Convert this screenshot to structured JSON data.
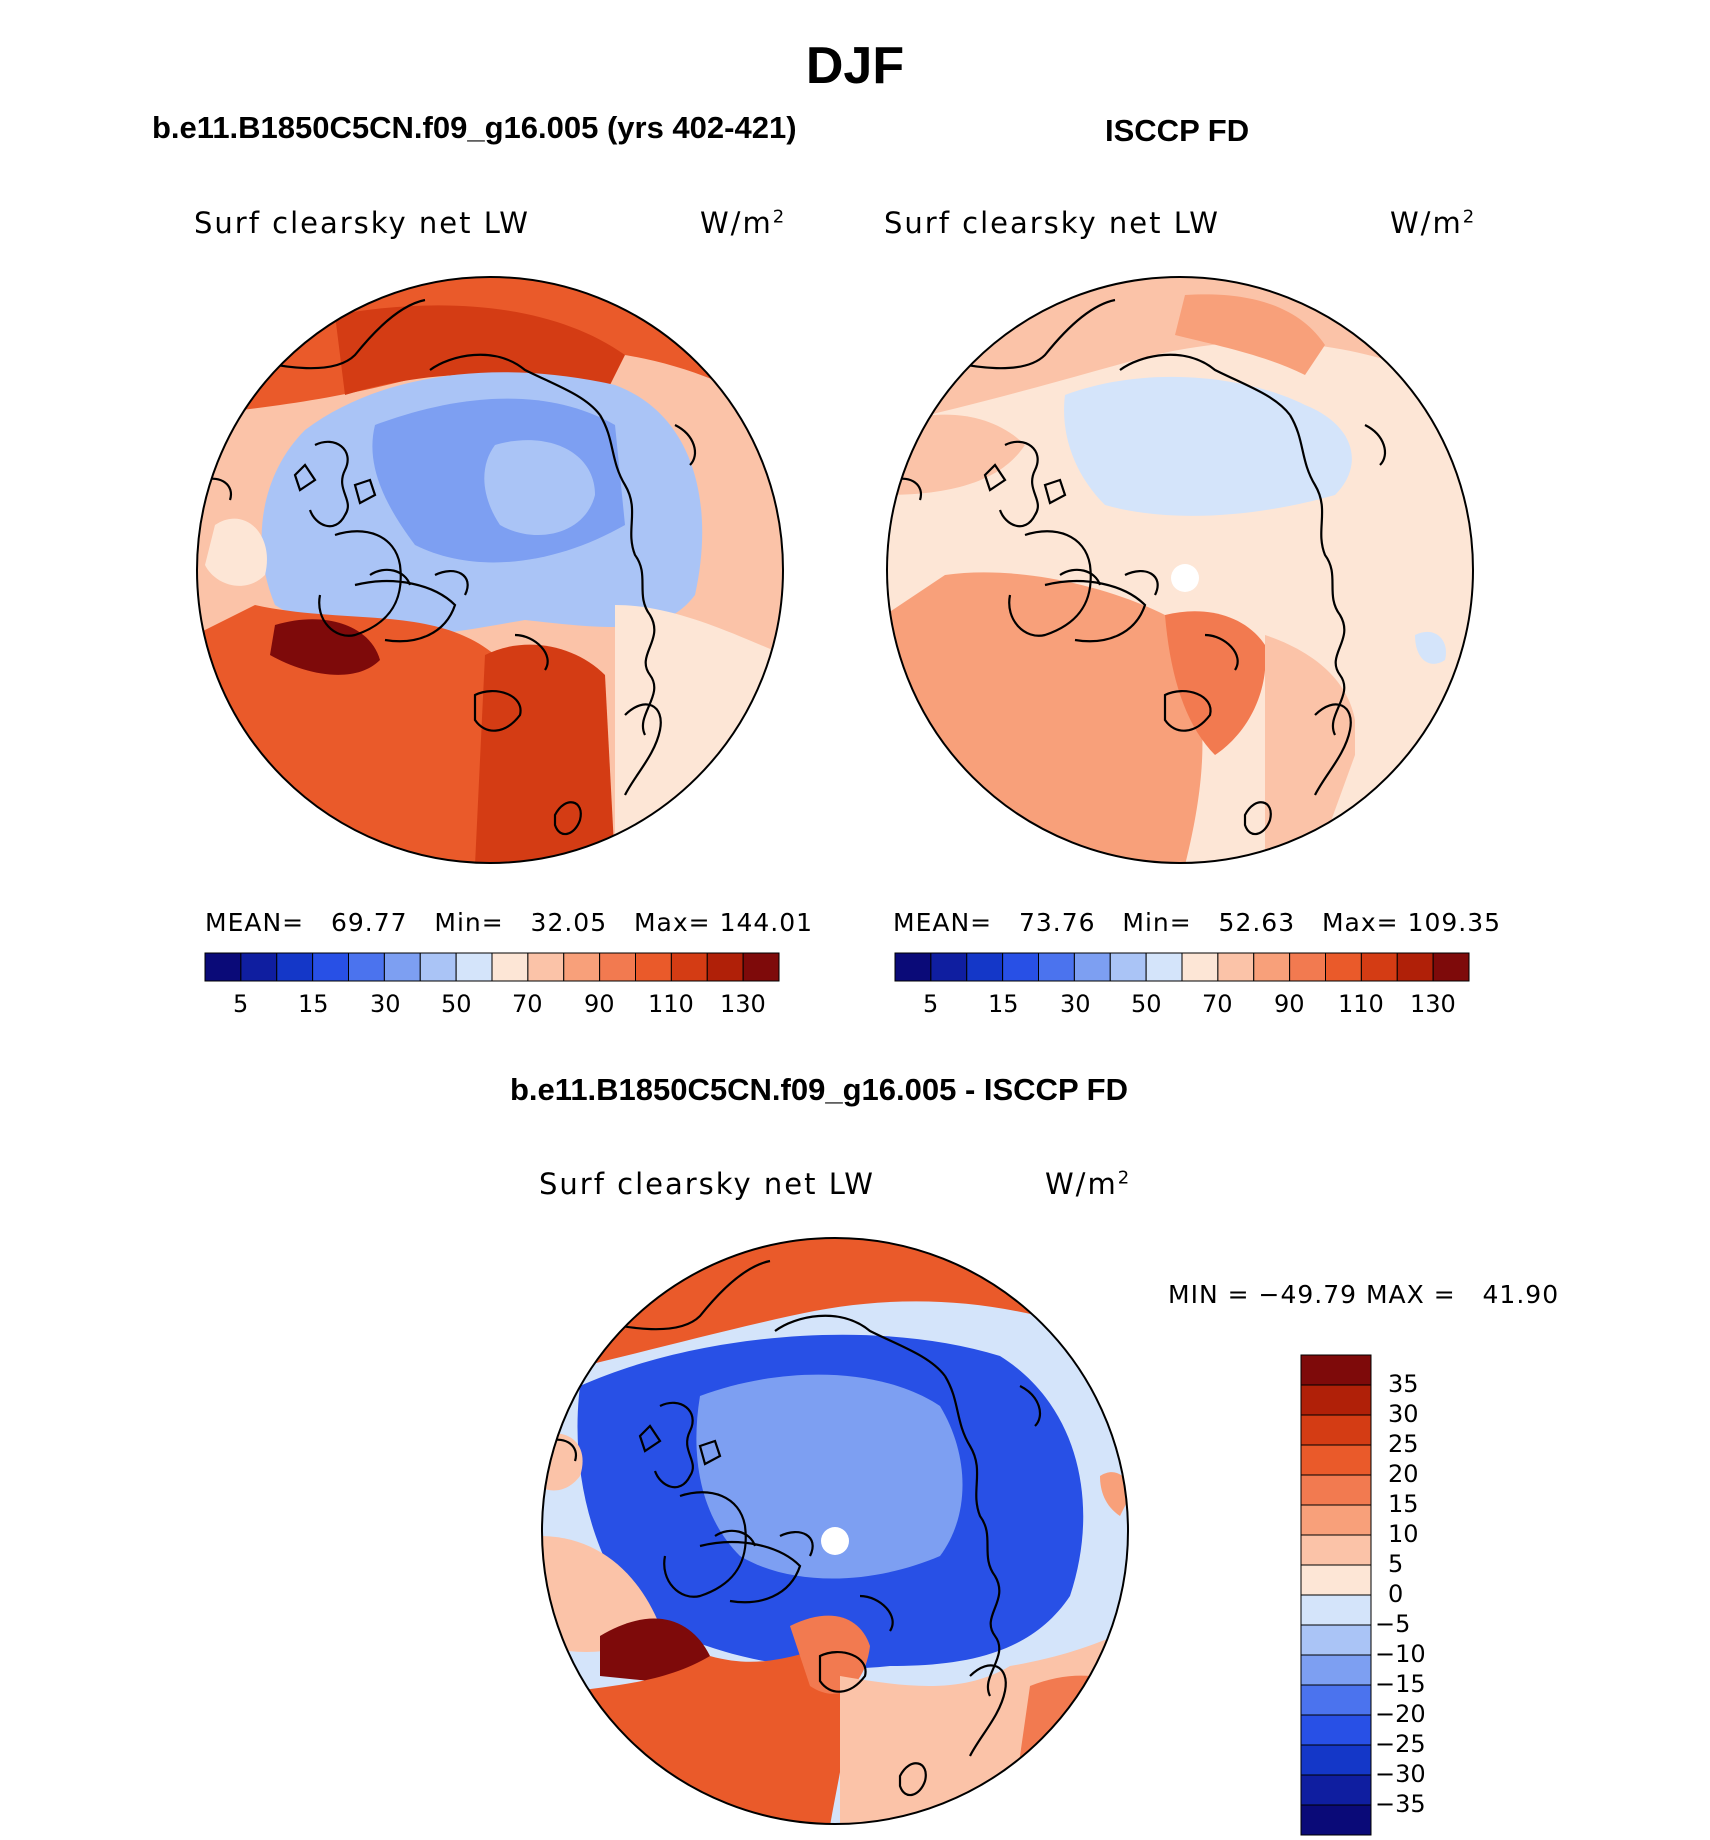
{
  "title": "DJF",
  "colors": {
    "abs": [
      "#0a0a78",
      "#0f1ea0",
      "#1437c8",
      "#2850e6",
      "#4b73ee",
      "#7d9ff2",
      "#aac4f6",
      "#d4e4fa",
      "#fde6d6",
      "#fbc3a8",
      "#f8a07a",
      "#f27a50",
      "#ea5a2a",
      "#d43c14",
      "#b02008",
      "#7e0a0a"
    ],
    "diff": [
      "#7e0a0a",
      "#b02008",
      "#d43c14",
      "#ea5a2a",
      "#f27a50",
      "#f8a07a",
      "#fbc3a8",
      "#fde6d6",
      "#d4e4fa",
      "#aac4f6",
      "#7d9ff2",
      "#4b73ee",
      "#2850e6",
      "#1437c8",
      "#0f1ea0",
      "#0a0a78"
    ]
  },
  "panels": {
    "model": {
      "title": "b.e11.B1850C5CN.f09_g16.005 (yrs 402-421)",
      "variable": "Surf clearsky net LW",
      "units_base": "W/m",
      "units_exp": "2",
      "mean_label": "MEAN=",
      "mean": "69.77",
      "min_label": "Min=",
      "min": "32.05",
      "max_label": "Max=",
      "max": "144.01"
    },
    "obs": {
      "title": "ISCCP FD",
      "variable": "Surf clearsky net LW",
      "units_base": "W/m",
      "units_exp": "2",
      "mean_label": "MEAN=",
      "mean": "73.76",
      "min_label": "Min=",
      "min": "52.63",
      "max_label": "Max=",
      "max": "109.35"
    },
    "diff": {
      "title": "b.e11.B1850C5CN.f09_g16.005 - ISCCP FD",
      "variable": "Surf clearsky net LW",
      "units_base": "W/m",
      "units_exp": "2",
      "min_label": "MIN =",
      "min": "−49.79",
      "max_label": "MAX =",
      "max": "41.90"
    }
  },
  "colorbar_abs": {
    "levels": [
      "5",
      "10",
      "15",
      "20",
      "30",
      "40",
      "50",
      "60",
      "70",
      "80",
      "90",
      "100",
      "110",
      "120",
      "130"
    ],
    "labels": [
      "5",
      "15",
      "30",
      "50",
      "70",
      "90",
      "110",
      "130"
    ]
  },
  "colorbar_diff": {
    "labels": [
      "35",
      "30",
      "25",
      "20",
      "15",
      "10",
      "5",
      "0",
      "−5",
      "−10",
      "−15",
      "−20",
      "−25",
      "−30",
      "−35"
    ]
  }
}
